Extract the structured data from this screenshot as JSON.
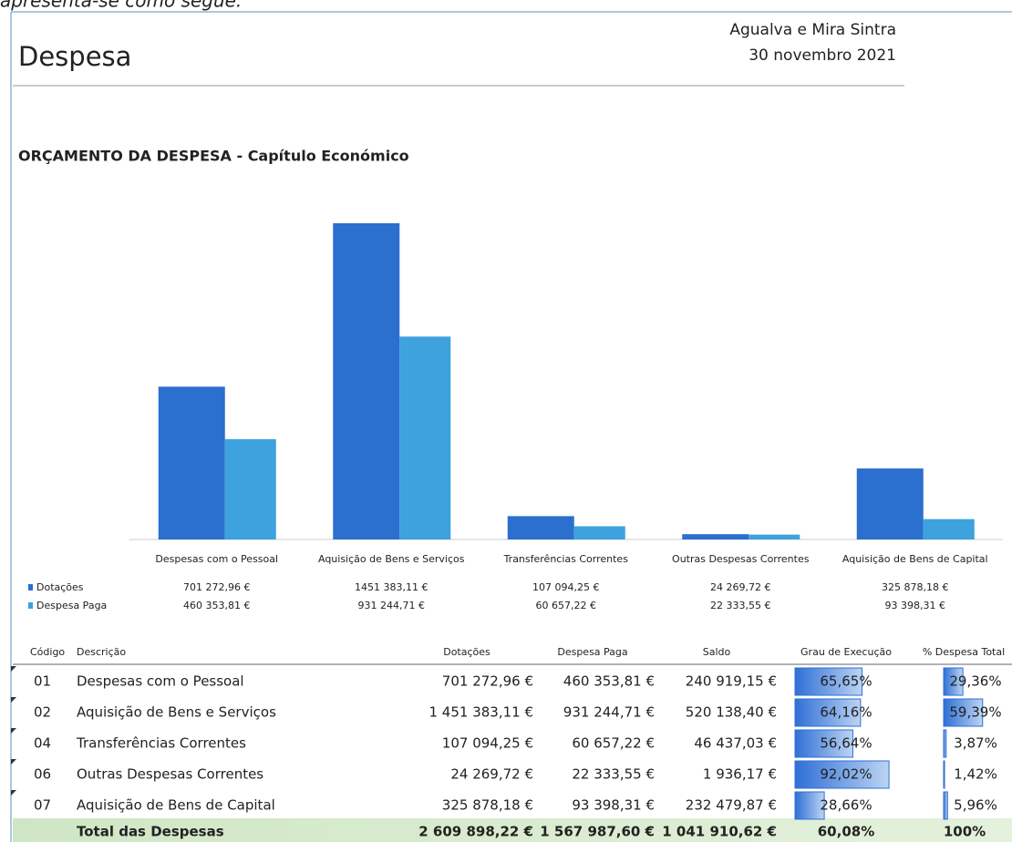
{
  "header": {
    "intro": "apresenta-se como segue:",
    "title": "Despesa",
    "place": "Agualva e Mira Sintra",
    "date": "30 novembro 2021"
  },
  "section_title": "ORÇAMENTO DA DESPESA - Capítulo Económico",
  "chart_data": {
    "type": "bar",
    "categories": [
      "Despesas com o Pessoal",
      "Aquisição de Bens e Serviços",
      "Transferências Correntes",
      "Outras Despesas Correntes",
      "Aquisição de Bens de Capital"
    ],
    "series": [
      {
        "name": "Dotações",
        "color": "#2b6fcf",
        "values": [
          701272.96,
          1451383.11,
          107094.25,
          24269.72,
          325878.18
        ],
        "value_labels": [
          "701 272,96 €",
          "1451 383,11 €",
          "107 094,25 €",
          "24 269,72 €",
          "325 878,18 €"
        ]
      },
      {
        "name": "Despesa Paga",
        "color": "#3da2de",
        "values": [
          460353.81,
          931244.71,
          60657.22,
          22333.55,
          93398.31
        ],
        "value_labels": [
          "460 353,81 €",
          "931 244,71 €",
          "60 657,22 €",
          "22 333,55 €",
          "93 398,31 €"
        ]
      }
    ]
  },
  "table": {
    "columns": [
      "Código",
      "Descrição",
      "Dotações",
      "Despesa Paga",
      "Saldo",
      "Grau de Execução",
      "% Despesa Total"
    ],
    "rows": [
      [
        "01",
        "Despesas com o Pessoal",
        "701 272,96 €",
        "460 353,81 €",
        "240 919,15 €",
        {
          "value": 65.65,
          "label": "65,65%"
        },
        {
          "value": 29.36,
          "label": "29,36%"
        }
      ],
      [
        "02",
        "Aquisição de Bens e Serviços",
        "1 451 383,11 €",
        "931 244,71 €",
        "520 138,40 €",
        {
          "value": 64.16,
          "label": "64,16%"
        },
        {
          "value": 59.39,
          "label": "59,39%"
        }
      ],
      [
        "04",
        "Transferências Correntes",
        "107 094,25 €",
        "60 657,22 €",
        "46 437,03 €",
        {
          "value": 56.64,
          "label": "56,64%"
        },
        {
          "value": 3.87,
          "label": "3,87%"
        }
      ],
      [
        "06",
        "Outras Despesas Correntes",
        "24 269,72 €",
        "22 333,55 €",
        "1 936,17 €",
        {
          "value": 92.02,
          "label": "92,02%"
        },
        {
          "value": 1.42,
          "label": "1,42%"
        }
      ],
      [
        "07",
        "Aquisição de Bens de Capital",
        "325 878,18 €",
        "93 398,31 €",
        "232 479,87 €",
        {
          "value": 28.66,
          "label": "28,66%"
        },
        {
          "value": 5.96,
          "label": "5,96%"
        }
      ]
    ],
    "total": [
      "Total das Despesas",
      "2 609 898,22 €",
      "1 567 987,60 €",
      "1 041 910,62 €",
      "60,08%",
      "100%"
    ]
  }
}
